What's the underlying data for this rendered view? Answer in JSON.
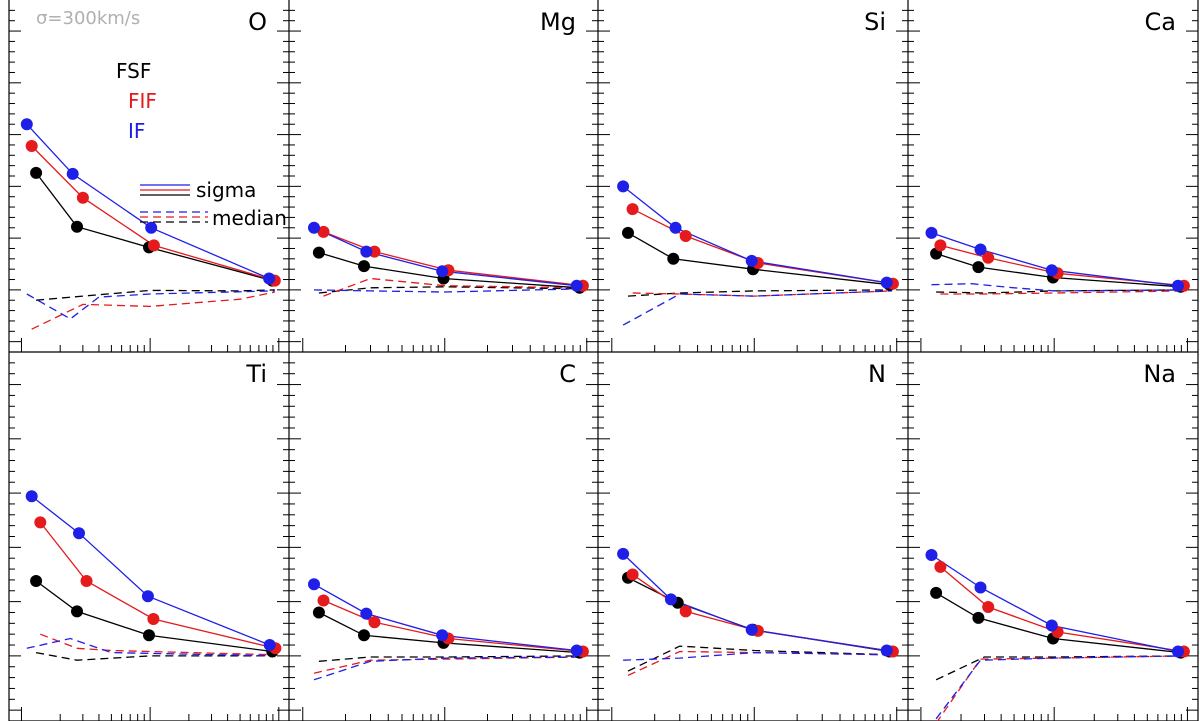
{
  "header": {
    "sigma_label": "σ=300km/s"
  },
  "legend": {
    "series": [
      {
        "label": "FSF",
        "color": "#000000"
      },
      {
        "label": "FIF",
        "color": "#e41a1c"
      },
      {
        "label": "IF",
        "color": "#1f1fe8"
      }
    ],
    "line_styles": [
      {
        "label": "sigma",
        "style": "solid"
      },
      {
        "label": "median",
        "style": "dashed"
      }
    ]
  },
  "colors": {
    "FSF": "#000000",
    "FIF": "#e41a1c",
    "IF": "#1f1fe8",
    "note": "#b0b0b0"
  },
  "chart_data": {
    "type": "line",
    "layout": "2x4 panel grid",
    "x_scale": "log",
    "x_tick_labels": "none",
    "y_tick_labels": "none",
    "ylim": [
      -0.06,
      0.28
    ],
    "panels": [
      {
        "element": "O",
        "sigma": [
          {
            "series": "FSF",
            "x": [
              1.3,
              2.7,
              9.8,
              89
            ],
            "y": [
              0.113,
              0.061,
              0.041,
              0.009
            ]
          },
          {
            "series": "FIF",
            "x": [
              1.2,
              3.0,
              10.7,
              93
            ],
            "y": [
              0.139,
              0.089,
              0.043,
              0.009
            ]
          },
          {
            "series": "IF",
            "x": [
              1.1,
              2.5,
              10.2,
              84
            ],
            "y": [
              0.16,
              0.112,
              0.06,
              0.011
            ]
          }
        ],
        "median": [
          {
            "series": "FSF",
            "x": [
              1.3,
              3,
              10,
              50,
              93
            ],
            "y": [
              -0.01,
              -0.006,
              -0.0005,
              -0.001,
              0.0
            ]
          },
          {
            "series": "FIF",
            "x": [
              1.2,
              3,
              10,
              50,
              93
            ],
            "y": [
              -0.038,
              -0.014,
              -0.016,
              -0.009,
              -0.002
            ]
          },
          {
            "series": "IF",
            "x": [
              1.1,
              2.4,
              4,
              10,
              93
            ],
            "y": [
              -0.004,
              -0.028,
              -0.007,
              -0.004,
              -0.001
            ]
          }
        ]
      },
      {
        "element": "Mg",
        "sigma": [
          {
            "series": "FSF",
            "x": [
              1.3,
              2.7,
              9.8,
              89
            ],
            "y": [
              0.036,
              0.023,
              0.011,
              0.002
            ]
          },
          {
            "series": "FIF",
            "x": [
              1.4,
              3.2,
              10.6,
              94
            ],
            "y": [
              0.056,
              0.037,
              0.019,
              0.004
            ]
          },
          {
            "series": "IF",
            "x": [
              1.2,
              2.8,
              9.6,
              85
            ],
            "y": [
              0.06,
              0.037,
              0.018,
              0.004
            ]
          }
        ],
        "median": [
          {
            "series": "FSF",
            "x": [
              1.3,
              3,
              10,
              93
            ],
            "y": [
              -0.003,
              0.002,
              0.003,
              0.001
            ]
          },
          {
            "series": "FIF",
            "x": [
              1.4,
              3,
              10,
              93
            ],
            "y": [
              -0.006,
              0.011,
              0.004,
              0.002
            ]
          },
          {
            "series": "IF",
            "x": [
              1.2,
              3,
              10,
              93
            ],
            "y": [
              0.0,
              -0.001,
              -0.002,
              0.001
            ]
          }
        ]
      },
      {
        "element": "Si",
        "sigma": [
          {
            "series": "FSF",
            "x": [
              1.3,
              2.7,
              9.8,
              89
            ],
            "y": [
              0.055,
              0.03,
              0.02,
              0.005
            ]
          },
          {
            "series": "FIF",
            "x": [
              1.4,
              3.3,
              10.6,
              94
            ],
            "y": [
              0.078,
              0.052,
              0.026,
              0.006
            ]
          },
          {
            "series": "IF",
            "x": [
              1.2,
              2.8,
              9.6,
              85
            ],
            "y": [
              0.1,
              0.06,
              0.028,
              0.007
            ]
          }
        ],
        "median": [
          {
            "series": "FSF",
            "x": [
              1.3,
              3,
              10,
              93
            ],
            "y": [
              -0.006,
              -0.003,
              -0.001,
              0.0
            ]
          },
          {
            "series": "FIF",
            "x": [
              1.4,
              3,
              10,
              93
            ],
            "y": [
              -0.003,
              -0.004,
              -0.006,
              -0.001
            ]
          },
          {
            "series": "IF",
            "x": [
              1.2,
              3,
              10,
              93
            ],
            "y": [
              -0.034,
              -0.004,
              -0.006,
              -0.001
            ]
          }
        ]
      },
      {
        "element": "Ca",
        "sigma": [
          {
            "series": "FSF",
            "x": [
              1.3,
              2.7,
              9.8,
              89
            ],
            "y": [
              0.035,
              0.022,
              0.012,
              0.003
            ]
          },
          {
            "series": "FIF",
            "x": [
              1.4,
              3.2,
              10.6,
              94
            ],
            "y": [
              0.043,
              0.031,
              0.016,
              0.004
            ]
          },
          {
            "series": "IF",
            "x": [
              1.2,
              2.8,
              9.6,
              85
            ],
            "y": [
              0.055,
              0.039,
              0.019,
              0.004
            ]
          }
        ],
        "median": [
          {
            "series": "FSF",
            "x": [
              1.3,
              3,
              10,
              93
            ],
            "y": [
              -0.002,
              -0.003,
              -0.001,
              0.0
            ]
          },
          {
            "series": "FIF",
            "x": [
              1.4,
              3,
              10,
              93
            ],
            "y": [
              -0.004,
              -0.004,
              -0.003,
              -0.001
            ]
          },
          {
            "series": "IF",
            "x": [
              1.2,
              2.4,
              5,
              10,
              93
            ],
            "y": [
              0.005,
              0.006,
              0.002,
              -0.001,
              0.0
            ]
          }
        ]
      },
      {
        "element": "Ti",
        "sigma": [
          {
            "series": "FSF",
            "x": [
              1.3,
              2.7,
              9.8,
              89
            ],
            "y": [
              0.069,
              0.041,
              0.019,
              0.004
            ]
          },
          {
            "series": "FIF",
            "x": [
              1.4,
              3.2,
              10.6,
              94
            ],
            "y": [
              0.123,
              0.069,
              0.034,
              0.007
            ]
          },
          {
            "series": "IF",
            "x": [
              1.2,
              2.8,
              9.6,
              85
            ],
            "y": [
              0.147,
              0.113,
              0.055,
              0.01
            ]
          }
        ],
        "median": [
          {
            "series": "FSF",
            "x": [
              1.3,
              2.7,
              10,
              93
            ],
            "y": [
              0.003,
              -0.004,
              0.0,
              0.0
            ]
          },
          {
            "series": "FIF",
            "x": [
              1.4,
              2.7,
              5,
              93
            ],
            "y": [
              0.02,
              0.007,
              0.005,
              0.001
            ]
          },
          {
            "series": "IF",
            "x": [
              1.1,
              2.4,
              5,
              93
            ],
            "y": [
              0.007,
              0.016,
              0.003,
              0.0
            ]
          }
        ]
      },
      {
        "element": "C",
        "sigma": [
          {
            "series": "FSF",
            "x": [
              1.3,
              2.7,
              9.8,
              89
            ],
            "y": [
              0.04,
              0.019,
              0.012,
              0.003
            ]
          },
          {
            "series": "FIF",
            "x": [
              1.4,
              3.2,
              10.6,
              94
            ],
            "y": [
              0.051,
              0.031,
              0.016,
              0.004
            ]
          },
          {
            "series": "IF",
            "x": [
              1.2,
              2.8,
              9.6,
              85
            ],
            "y": [
              0.066,
              0.039,
              0.019,
              0.005
            ]
          }
        ],
        "median": [
          {
            "series": "FSF",
            "x": [
              1.3,
              3,
              10,
              93
            ],
            "y": [
              -0.005,
              -0.001,
              -0.001,
              0.0
            ]
          },
          {
            "series": "FIF",
            "x": [
              1.2,
              3,
              10,
              93
            ],
            "y": [
              -0.016,
              -0.004,
              -0.003,
              -0.001
            ]
          },
          {
            "series": "IF",
            "x": [
              1.2,
              3,
              10,
              93
            ],
            "y": [
              -0.022,
              -0.005,
              -0.002,
              -0.001
            ]
          }
        ]
      },
      {
        "element": "N",
        "sigma": [
          {
            "series": "FSF",
            "x": [
              1.3,
              2.9,
              9.8,
              89
            ],
            "y": [
              0.072,
              0.049,
              0.024,
              0.004
            ]
          },
          {
            "series": "FIF",
            "x": [
              1.4,
              3.3,
              10.6,
              94
            ],
            "y": [
              0.075,
              0.041,
              0.023,
              0.004
            ]
          },
          {
            "series": "IF",
            "x": [
              1.2,
              2.6,
              9.6,
              85
            ],
            "y": [
              0.094,
              0.052,
              0.024,
              0.005
            ]
          }
        ],
        "median": [
          {
            "series": "FSF",
            "x": [
              1.3,
              3,
              10,
              93
            ],
            "y": [
              -0.014,
              0.009,
              0.005,
              0.001
            ]
          },
          {
            "series": "FIF",
            "x": [
              1.3,
              3,
              10,
              93
            ],
            "y": [
              -0.018,
              0.004,
              0.003,
              0.001
            ]
          },
          {
            "series": "IF",
            "x": [
              1.2,
              3,
              10,
              93
            ],
            "y": [
              -0.004,
              -0.002,
              0.003,
              0.001
            ]
          }
        ]
      },
      {
        "element": "Na",
        "sigma": [
          {
            "series": "FSF",
            "x": [
              1.3,
              2.7,
              9.8,
              89
            ],
            "y": [
              0.058,
              0.035,
              0.016,
              0.003
            ]
          },
          {
            "series": "FIF",
            "x": [
              1.4,
              3.2,
              10.6,
              94
            ],
            "y": [
              0.082,
              0.045,
              0.022,
              0.004
            ]
          },
          {
            "series": "IF",
            "x": [
              1.2,
              2.8,
              9.6,
              85
            ],
            "y": [
              0.093,
              0.063,
              0.028,
              0.004
            ]
          }
        ],
        "median": [
          {
            "series": "FSF",
            "x": [
              1.3,
              3,
              10,
              93
            ],
            "y": [
              -0.022,
              -0.001,
              -0.001,
              0.0
            ]
          },
          {
            "series": "FIF",
            "x": [
              1.3,
              2.8,
              10,
              93
            ],
            "y": [
              -0.062,
              -0.003,
              -0.002,
              0.0
            ]
          },
          {
            "series": "IF",
            "x": [
              1.3,
              2.8,
              10,
              93
            ],
            "y": [
              -0.058,
              -0.004,
              -0.002,
              0.0
            ]
          }
        ]
      }
    ]
  }
}
